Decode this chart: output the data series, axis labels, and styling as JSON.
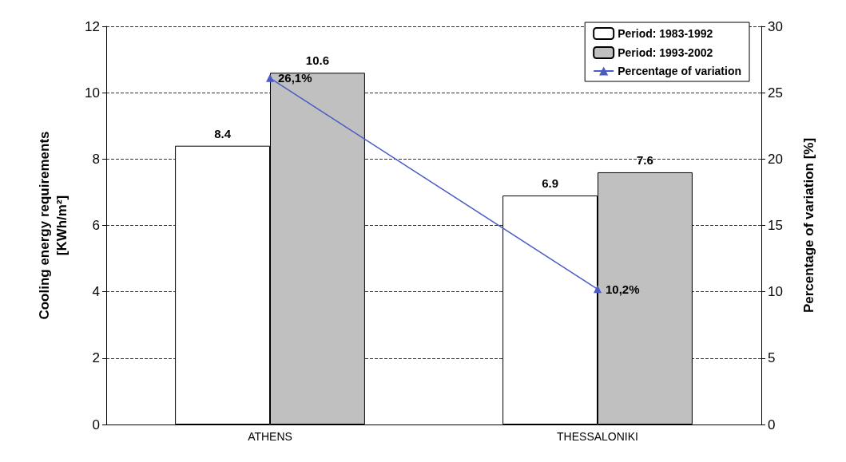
{
  "chart_data": {
    "type": "bar",
    "categories": [
      "ATHENS",
      "THESSALONIKI"
    ],
    "ylabel": "Cooling energy requirements\n[KWh/m²]",
    "y2label": "Percentage of variation [%]",
    "series": [
      {
        "name": "Period: 1983-1992",
        "color": "#ffffff",
        "values": [
          8.4,
          6.9
        ]
      },
      {
        "name": "Period: 1993-2002",
        "color": "#c0c0c0",
        "values": [
          10.6,
          7.6
        ]
      },
      {
        "name": "Percentage of variation",
        "type": "line",
        "axis": "y2",
        "color": "#4a5bc4",
        "marker": "triangle",
        "values": [
          26.1,
          10.2
        ],
        "value_labels": [
          "26,1%",
          "10,2%"
        ]
      }
    ],
    "data_labels": true,
    "ylim": [
      0,
      12
    ],
    "yticks": [
      0,
      2,
      4,
      6,
      8,
      10,
      12
    ],
    "y2lim": [
      0,
      30
    ],
    "y2ticks": [
      0,
      5,
      10,
      15,
      20,
      25,
      30
    ],
    "grid": "y",
    "legend": "top right"
  }
}
